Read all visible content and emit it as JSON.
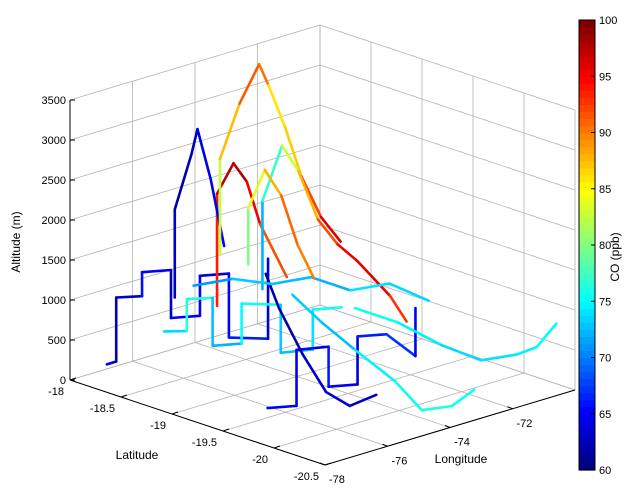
{
  "chart_data": {
    "type": "line",
    "subtype": "3d-flight-tracks-colored",
    "title": "",
    "axes": {
      "z": {
        "label": "Altitude (m)",
        "range": [
          0,
          3500
        ],
        "ticks": [
          0,
          500,
          1000,
          1500,
          2000,
          2500,
          3000,
          3500
        ]
      },
      "lat": {
        "label": "Latitude",
        "range": [
          -20.5,
          -18
        ],
        "ticks": [
          -18,
          -18.5,
          -19,
          -19.5,
          -20,
          -20.5
        ]
      },
      "lon": {
        "label": "Longitude",
        "range": [
          -78,
          -70
        ],
        "ticks": [
          -78,
          -76,
          -74,
          -72
        ],
        "tick_labels": [
          "-78",
          "-76",
          "-74",
          "-72"
        ]
      }
    },
    "colorbar": {
      "label": "CO (ppb)",
      "range": [
        60,
        100
      ],
      "ticks": [
        60,
        65,
        70,
        75,
        80,
        85,
        90,
        95,
        100
      ],
      "colormap": "jet"
    },
    "grid": true,
    "series": [
      {
        "points": [
          [
            -77.8,
            -18.3,
            300
          ],
          [
            -77.5,
            -18.3,
            300
          ],
          [
            -77.5,
            -18.3,
            1100
          ],
          [
            -77.0,
            -18.4,
            1100
          ],
          [
            -77.0,
            -18.4,
            1400
          ],
          [
            -76.4,
            -18.5,
            1400
          ],
          [
            -76.4,
            -18.5,
            800
          ],
          [
            -75.8,
            -18.6,
            800
          ],
          [
            -75.8,
            -18.6,
            1300
          ],
          [
            -75.2,
            -18.7,
            1300
          ],
          [
            -75.2,
            -18.7,
            500
          ],
          [
            -74.6,
            -18.9,
            500
          ],
          [
            -74.6,
            -18.9,
            1500
          ]
        ],
        "values": [
          65,
          63,
          62,
          64,
          67,
          62,
          63,
          66,
          64,
          62,
          68,
          64,
          63
        ]
      },
      {
        "points": [
          [
            -77.6,
            -18.8,
            900
          ],
          [
            -77.2,
            -18.9,
            900
          ],
          [
            -77.2,
            -18.9,
            1300
          ],
          [
            -76.7,
            -19.0,
            1300
          ],
          [
            -76.7,
            -19.0,
            700
          ],
          [
            -76.1,
            -19.1,
            700
          ],
          [
            -76.1,
            -19.1,
            1200
          ],
          [
            -75.5,
            -19.3,
            1200
          ],
          [
            -75.5,
            -19.3,
            600
          ],
          [
            -74.8,
            -19.4,
            600
          ],
          [
            -74.8,
            -19.4,
            1100
          ],
          [
            -74.2,
            -19.5,
            1100
          ]
        ],
        "values": [
          72,
          75,
          78,
          74,
          71,
          73,
          77,
          74,
          72,
          73,
          75,
          76
        ]
      },
      {
        "points": [
          [
            -76.9,
            -19.6,
            200
          ],
          [
            -76.3,
            -19.7,
            200
          ],
          [
            -76.3,
            -19.7,
            900
          ],
          [
            -75.6,
            -19.8,
            900
          ],
          [
            -75.6,
            -19.8,
            400
          ],
          [
            -75.0,
            -19.9,
            400
          ],
          [
            -75.0,
            -19.9,
            1000
          ],
          [
            -74.4,
            -20.0,
            1000
          ],
          [
            -73.8,
            -20.1,
            700
          ],
          [
            -73.8,
            -20.1,
            1300
          ]
        ],
        "values": [
          64,
          66,
          63,
          65,
          67,
          62,
          64,
          68,
          66,
          63
        ]
      },
      {
        "points": [
          [
            -74.6,
            -18.4,
            700
          ],
          [
            -74.6,
            -18.4,
            2100
          ],
          [
            -74.4,
            -18.5,
            2500
          ],
          [
            -74.3,
            -18.6,
            2300
          ],
          [
            -74.2,
            -18.7,
            1800
          ],
          [
            -74.0,
            -18.9,
            1200
          ]
        ],
        "values": [
          92,
          96,
          99,
          97,
          94,
          90
        ]
      },
      {
        "points": [
          [
            -75.3,
            -18.2,
            800
          ],
          [
            -75.3,
            -18.2,
            1900
          ],
          [
            -75.1,
            -18.3,
            2600
          ],
          [
            -74.9,
            -18.3,
            2900
          ],
          [
            -74.8,
            -18.4,
            2300
          ],
          [
            -74.7,
            -18.5,
            1500
          ]
        ],
        "values": [
          64,
          62,
          61,
          63,
          65,
          64
        ]
      },
      {
        "points": [
          [
            -73.2,
            -18.0,
            1000
          ],
          [
            -73.2,
            -18.0,
            2200
          ],
          [
            -72.9,
            -18.1,
            2900
          ],
          [
            -72.6,
            -18.2,
            3400
          ],
          [
            -72.3,
            -18.2,
            3100
          ],
          [
            -72.1,
            -18.3,
            2600
          ],
          [
            -71.9,
            -18.4,
            2000
          ],
          [
            -71.6,
            -18.5,
            1500
          ],
          [
            -71.3,
            -18.6,
            1200
          ]
        ],
        "values": [
          80,
          85,
          90,
          93,
          88,
          84,
          90,
          95,
          98
        ]
      },
      {
        "points": [
          [
            -73.8,
            -18.6,
            900
          ],
          [
            -73.8,
            -18.6,
            2000
          ],
          [
            -73.5,
            -18.7,
            2700
          ],
          [
            -73.3,
            -18.8,
            2400
          ],
          [
            -73.0,
            -18.9,
            1800
          ],
          [
            -72.7,
            -19.0,
            1500
          ],
          [
            -72.4,
            -19.1,
            1300
          ],
          [
            -72.0,
            -19.3,
            900
          ],
          [
            -71.8,
            -19.4,
            600
          ]
        ],
        "values": [
          70,
          74,
          80,
          86,
          90,
          94,
          97,
          95,
          91
        ]
      },
      {
        "points": [
          [
            -74.8,
            -19.2,
            1200
          ],
          [
            -74.5,
            -19.4,
            900
          ],
          [
            -74.1,
            -19.6,
            600
          ],
          [
            -73.8,
            -19.9,
            300
          ],
          [
            -73.6,
            -20.1,
            0
          ],
          [
            -73.3,
            -20.3,
            100
          ],
          [
            -72.9,
            -20.4,
            300
          ]
        ],
        "values": [
          74,
          72,
          73,
          76,
          75,
          77,
          74
        ]
      },
      {
        "points": [
          [
            -75.0,
            -19.0,
            1400
          ],
          [
            -74.9,
            -19.1,
            1000
          ],
          [
            -74.8,
            -19.3,
            500
          ],
          [
            -74.7,
            -19.5,
            100
          ],
          [
            -74.6,
            -19.7,
            0
          ],
          [
            -74.4,
            -19.9,
            200
          ]
        ],
        "values": [
          63,
          61,
          62,
          64,
          62,
          63
        ]
      },
      {
        "points": [
          [
            -72.8,
            -19.2,
            800
          ],
          [
            -72.4,
            -19.5,
            700
          ],
          [
            -72.0,
            -19.8,
            500
          ],
          [
            -71.7,
            -20.1,
            400
          ],
          [
            -71.2,
            -20.3,
            500
          ],
          [
            -70.9,
            -20.4,
            600
          ],
          [
            -70.6,
            -20.5,
            900
          ]
        ],
        "values": [
          76,
          75,
          74,
          73,
          75,
          74,
          76
        ]
      },
      {
        "points": [
          [
            -76.0,
            -18.6,
            1200
          ],
          [
            -75.4,
            -18.8,
            1300
          ],
          [
            -74.8,
            -19.0,
            1250
          ],
          [
            -74.2,
            -19.2,
            1350
          ],
          [
            -73.6,
            -19.4,
            1200
          ],
          [
            -73.0,
            -19.6,
            1300
          ],
          [
            -72.4,
            -19.8,
            1100
          ]
        ],
        "values": [
          70,
          72,
          74,
          71,
          73,
          75,
          72
        ]
      },
      {
        "points": [
          [
            -73.6,
            -18.4,
            1100
          ],
          [
            -73.6,
            -18.4,
            1800
          ],
          [
            -73.4,
            -18.5,
            2300
          ],
          [
            -73.2,
            -18.6,
            2000
          ],
          [
            -73.0,
            -18.7,
            1400
          ],
          [
            -72.8,
            -18.8,
            1000
          ]
        ],
        "values": [
          78,
          82,
          86,
          90,
          92,
          88
        ]
      }
    ]
  }
}
